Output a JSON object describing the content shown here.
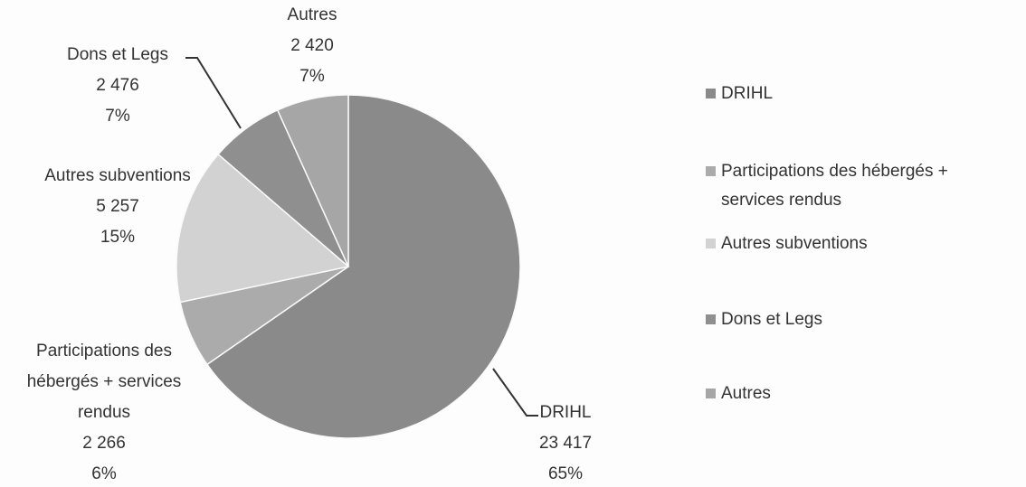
{
  "chart_data": {
    "type": "pie",
    "categories": [
      "DRIHL",
      "Participations des hébergés + services rendus",
      "Autres subventions",
      "Dons et Legs",
      "Autres"
    ],
    "values": [
      23417,
      2266,
      5257,
      2476,
      2420
    ],
    "value_labels": [
      "23 417",
      "2 266",
      "5 257",
      "2 476",
      "2 420"
    ],
    "percent_labels": [
      "65%",
      "6%",
      "15%",
      "7%",
      "7%"
    ],
    "colors": [
      "#8a8a8a",
      "#ababab",
      "#d2d2d2",
      "#8f8f8f",
      "#a6a6a6"
    ],
    "legend": "right"
  }
}
